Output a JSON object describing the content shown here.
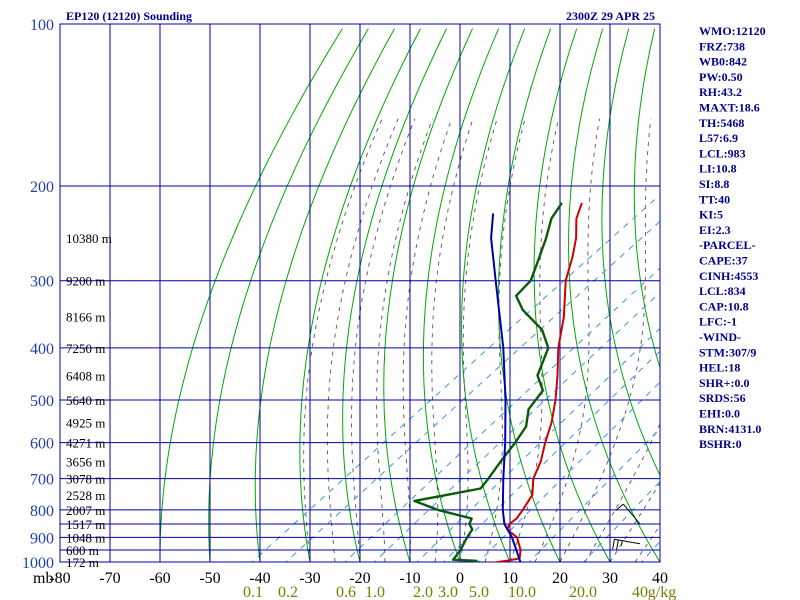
{
  "chart_data": {
    "type": "line",
    "title": "EP120 (12120) Sounding",
    "timestamp": "2300Z 29 APR 25",
    "pressure_axis": {
      "unit": "mb",
      "scale": "log",
      "ylim": [
        1000,
        100
      ],
      "ticks": [
        "100",
        "200",
        "300",
        "400",
        "500",
        "600",
        "700",
        "800",
        "900",
        "1000"
      ]
    },
    "temperature_axis": {
      "unit": "°C",
      "xlim": [
        -80,
        40
      ],
      "ticks": [
        "-80",
        "-70",
        "-60",
        "-50",
        "-40",
        "-30",
        "-20",
        "-10",
        "0",
        "10",
        "20",
        "30",
        "40"
      ]
    },
    "height_labels": [
      {
        "p": 250,
        "label": "10380 m"
      },
      {
        "p": 300,
        "label": "9200 m"
      },
      {
        "p": 350,
        "label": "8166 m"
      },
      {
        "p": 400,
        "label": "7250 m"
      },
      {
        "p": 450,
        "label": "6408 m"
      },
      {
        "p": 500,
        "label": "5640 m"
      },
      {
        "p": 550,
        "label": "4925 m"
      },
      {
        "p": 600,
        "label": "4271 m"
      },
      {
        "p": 650,
        "label": "3656 m"
      },
      {
        "p": 700,
        "label": "3078 m"
      },
      {
        "p": 750,
        "label": "2528 m"
      },
      {
        "p": 800,
        "label": "2007 m"
      },
      {
        "p": 850,
        "label": "1517 m"
      },
      {
        "p": 900,
        "label": "1048 m"
      },
      {
        "p": 950,
        "label": "600 m"
      },
      {
        "p": 1000,
        "label": "172 m"
      }
    ],
    "mixing_ratio_labels": [
      "0.1",
      "0.2",
      "0.6",
      "1.0",
      "2.0",
      "3.0",
      "5.0",
      "10.0",
      "20.0",
      "40",
      "g/kg"
    ],
    "series": [
      {
        "name": "",
        "color": "#cc0000",
        "points": [
          {
            "p": 1010,
            "t": 5
          },
          {
            "p": 995,
            "t": 9
          },
          {
            "p": 985,
            "t": 11
          },
          {
            "p": 950,
            "t": 9
          },
          {
            "p": 900,
            "t": 5
          },
          {
            "p": 870,
            "t": 1
          },
          {
            "p": 850,
            "t": 0
          },
          {
            "p": 830,
            "t": 0
          },
          {
            "p": 800,
            "t": -1
          },
          {
            "p": 750,
            "t": -3
          },
          {
            "p": 700,
            "t": -7
          },
          {
            "p": 650,
            "t": -10
          },
          {
            "p": 600,
            "t": -14
          },
          {
            "p": 550,
            "t": -18
          },
          {
            "p": 500,
            "t": -23
          },
          {
            "p": 450,
            "t": -29
          },
          {
            "p": 400,
            "t": -36
          },
          {
            "p": 350,
            "t": -43
          },
          {
            "p": 300,
            "t": -52
          },
          {
            "p": 270,
            "t": -57
          },
          {
            "p": 250,
            "t": -61
          },
          {
            "p": 230,
            "t": -66
          },
          {
            "p": 215,
            "t": -69
          }
        ]
      },
      {
        "name": "",
        "color": "#0a5a0a",
        "points": [
          {
            "p": 1012,
            "t": 3
          },
          {
            "p": 995,
            "t": 3
          },
          {
            "p": 990,
            "t": -2
          },
          {
            "p": 950,
            "t": -3
          },
          {
            "p": 900,
            "t": -5
          },
          {
            "p": 870,
            "t": -6
          },
          {
            "p": 850,
            "t": -8
          },
          {
            "p": 830,
            "t": -9
          },
          {
            "p": 800,
            "t": -18
          },
          {
            "p": 770,
            "t": -25
          },
          {
            "p": 750,
            "t": -20
          },
          {
            "p": 730,
            "t": -15
          },
          {
            "p": 700,
            "t": -16
          },
          {
            "p": 650,
            "t": -18
          },
          {
            "p": 600,
            "t": -20
          },
          {
            "p": 560,
            "t": -22
          },
          {
            "p": 520,
            "t": -26
          },
          {
            "p": 480,
            "t": -28
          },
          {
            "p": 450,
            "t": -33
          },
          {
            "p": 400,
            "t": -38
          },
          {
            "p": 370,
            "t": -44
          },
          {
            "p": 340,
            "t": -53
          },
          {
            "p": 320,
            "t": -58
          },
          {
            "p": 300,
            "t": -59
          },
          {
            "p": 280,
            "t": -62
          },
          {
            "p": 250,
            "t": -67
          },
          {
            "p": 230,
            "t": -71
          },
          {
            "p": 215,
            "t": -73
          }
        ]
      },
      {
        "name": "",
        "color": "#0000aa",
        "points": [
          {
            "p": 1012,
            "t": 13
          },
          {
            "p": 900,
            "t": 4
          },
          {
            "p": 850,
            "t": -1
          },
          {
            "p": 800,
            "t": -5
          },
          {
            "p": 700,
            "t": -13
          },
          {
            "p": 600,
            "t": -22
          },
          {
            "p": 500,
            "t": -33
          },
          {
            "p": 400,
            "t": -47
          },
          {
            "p": 300,
            "t": -66
          },
          {
            "p": 250,
            "t": -78
          },
          {
            "p": 225,
            "t": -84
          }
        ]
      }
    ],
    "wind_barbs": [
      {
        "p": 850,
        "dir": 320,
        "kt": 10
      },
      {
        "p": 925,
        "dir": 280,
        "kt": 25
      }
    ]
  },
  "indices": [
    "WMO:12120",
    "FRZ:738",
    "WB0:842",
    "PW:0.50",
    "RH:43.2",
    "MAXT:18.6",
    "TH:5468",
    "L57:6.9",
    "LCL:983",
    "LI:10.8",
    "SI:8.8",
    "TT:40",
    "KI:5",
    "EI:2.3",
    "-PARCEL-",
    "CAPE:37",
    "CINH:4553",
    "LCL:834",
    "CAP:10.8",
    "LFC:-1",
    "-WIND-",
    "STM:307/9",
    "HEL:18",
    "SHR+:0.0",
    "SRDS:56",
    "EHI:0.0",
    "BRN:4131.0",
    "BSHR:0"
  ],
  "colors": {
    "grid": "#0000aa",
    "dry_adiabat": "#00aa00",
    "moist_adiabat": "#555555",
    "mixing_ratio": "#3a9ad8",
    "temperature": "#cc0000",
    "dewpoint": "#0a5a0a",
    "parcel": "#0000aa",
    "pressure_ticks": "#1f3fae",
    "index_text": "#00008b",
    "mixing_labels": "#7a7a00"
  }
}
